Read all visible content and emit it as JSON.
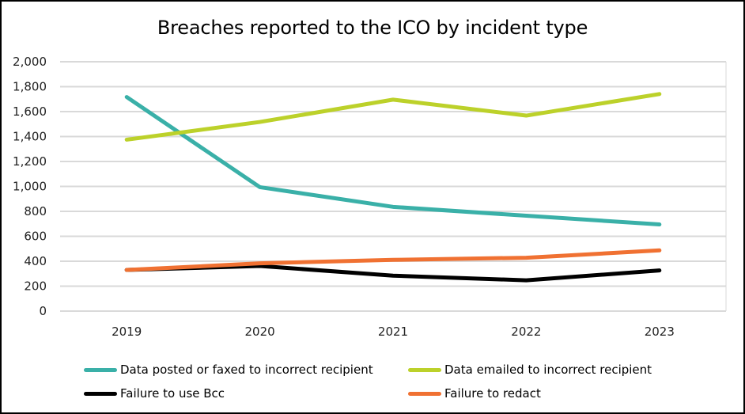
{
  "chart_data": {
    "type": "line",
    "title": "Breaches reported to the ICO by incident type",
    "xlabel": "",
    "ylabel": "",
    "categories": [
      "2019",
      "2020",
      "2021",
      "2022",
      "2023"
    ],
    "ylim": [
      0,
      2000
    ],
    "yticks": [
      0,
      200,
      400,
      600,
      800,
      1000,
      1200,
      1400,
      1600,
      1800,
      2000
    ],
    "ytick_labels": [
      "0",
      "200",
      "400",
      "600",
      "800",
      "1,000",
      "1,200",
      "1,400",
      "1,600",
      "1,800",
      "2,000"
    ],
    "grid": true,
    "legend_position": "bottom",
    "series": [
      {
        "name": "Data posted or faxed to incorrect recipient",
        "color": "#3AB0A8",
        "values": [
          1717,
          994,
          836,
          765,
          695
        ]
      },
      {
        "name": "Data emailed to incorrect recipient",
        "color": "#BCD12A",
        "values": [
          1375,
          1517,
          1696,
          1568,
          1741
        ]
      },
      {
        "name": "Failure to use Bcc",
        "color": "#000000",
        "values": [
          330,
          362,
          284,
          247,
          326
        ]
      },
      {
        "name": "Failure to redact",
        "color": "#F07132",
        "values": [
          330,
          383,
          411,
          428,
          487
        ]
      }
    ]
  }
}
